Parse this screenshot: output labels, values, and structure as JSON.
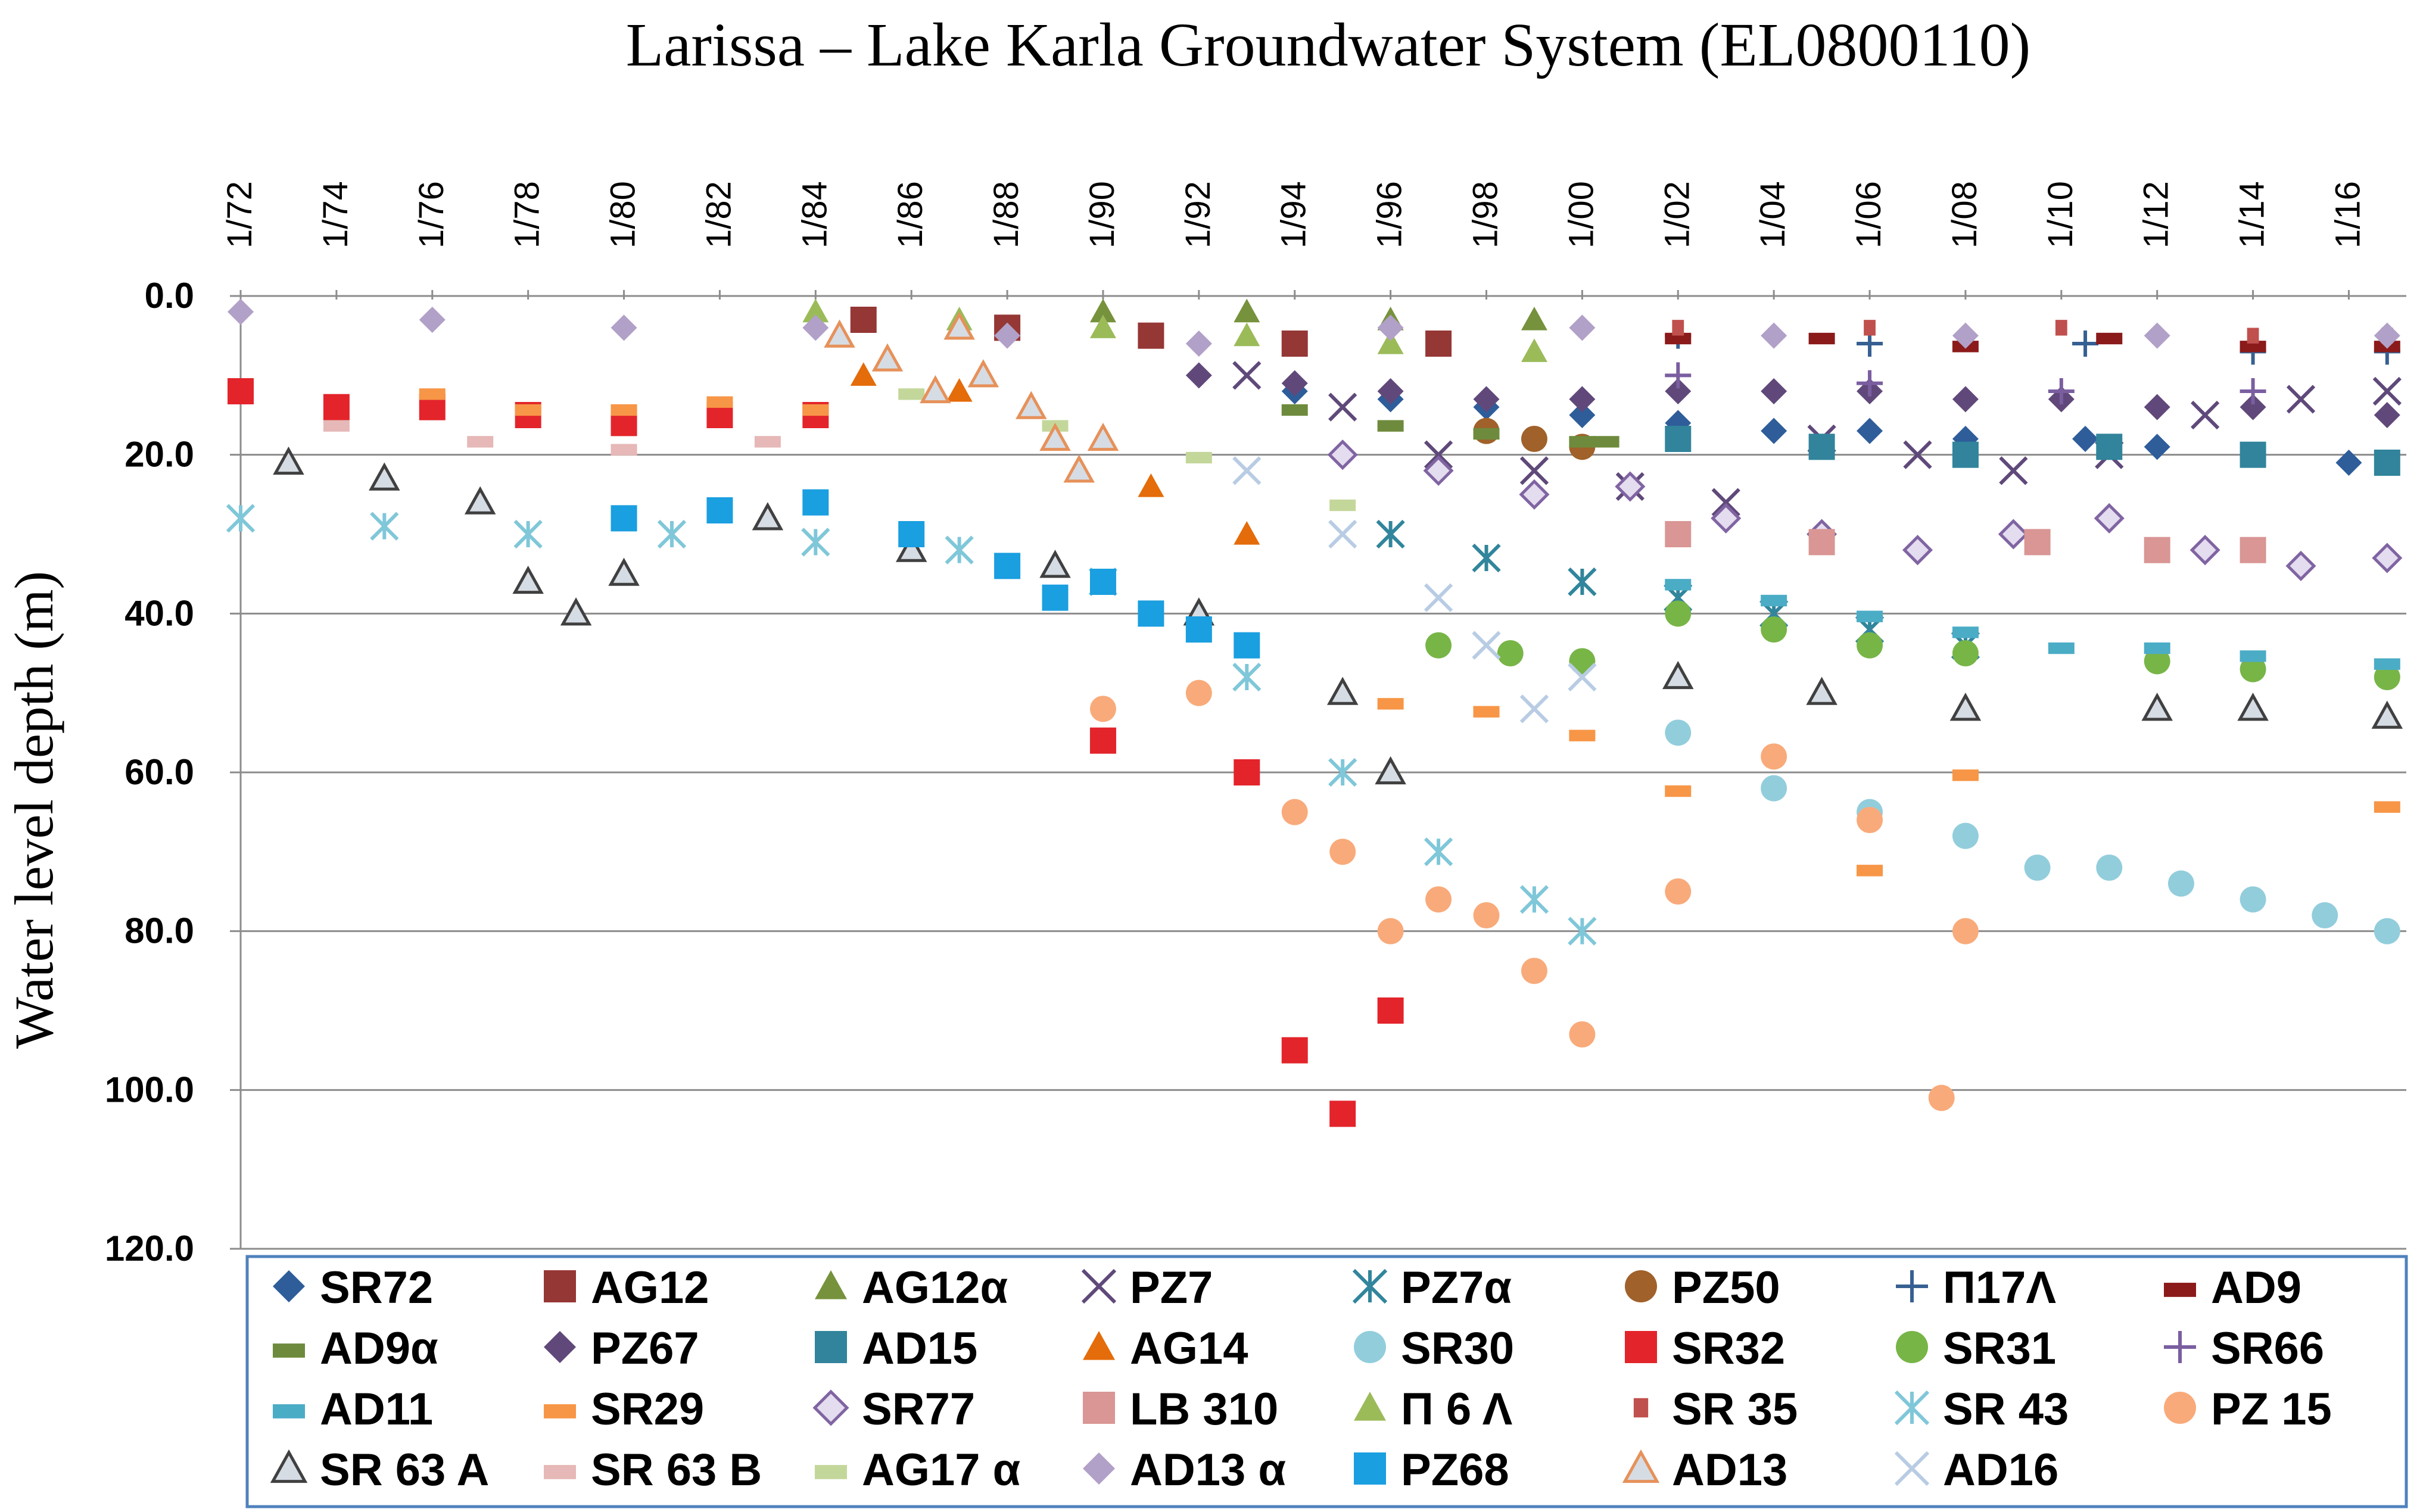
{
  "chart_data": {
    "type": "scatter",
    "title": "Larissa – Lake Karla Groundwater System (EL0800110)",
    "xlabel": "",
    "ylabel": "Water level depth (m)",
    "ylim": [
      0,
      120
    ],
    "y_inverted": true,
    "y_ticks": [
      "0.0",
      "20.0",
      "40.0",
      "60.0",
      "80.0",
      "100.0",
      "120.0"
    ],
    "x_ticks": [
      "1/72",
      "1/74",
      "1/76",
      "1/78",
      "1/80",
      "1/82",
      "1/84",
      "1/86",
      "1/88",
      "1/90",
      "1/92",
      "1/94",
      "1/96",
      "1/98",
      "1/00",
      "1/02",
      "1/04",
      "1/06",
      "1/08",
      "1/10",
      "1/12",
      "1/14",
      "1/16"
    ],
    "x_range_years": [
      1972,
      2017.2
    ],
    "grid": true,
    "legend_position": "bottom",
    "series": [
      {
        "name": "SR72",
        "marker": "diamond",
        "color": "#2e5d9a",
        "x": [
          1994.0,
          1996.0,
          1998.0,
          2000.0,
          2002.0,
          2004.0,
          2006.0,
          2008.0,
          2010.5,
          2012.0,
          2014.0,
          2016.0
        ],
        "y": [
          12,
          13,
          14,
          15,
          16,
          17,
          17,
          18,
          18,
          19,
          20,
          21
        ]
      },
      {
        "name": "AG12",
        "marker": "square",
        "color": "#953735",
        "x": [
          1985.0,
          1988.0,
          1991.0,
          1994.0,
          1997.0
        ],
        "y": [
          3,
          4,
          5,
          6,
          6
        ]
      },
      {
        "name": "AG12α",
        "marker": "triangle",
        "color": "#76923c",
        "x": [
          1990.0,
          1993.0,
          1996.0,
          1999.0
        ],
        "y": [
          2,
          2,
          3,
          3
        ]
      },
      {
        "name": "PZ7",
        "marker": "x",
        "color": "#5f497a",
        "x": [
          1993.0,
          1995.0,
          1997.0,
          1999.0,
          2001.0,
          2003.0,
          2005.0,
          2007.0,
          2009.0,
          2011.0,
          2013.0,
          2015.0,
          2016.8
        ],
        "y": [
          10,
          14,
          20,
          22,
          24,
          26,
          18,
          20,
          22,
          20,
          15,
          13,
          12
        ]
      },
      {
        "name": "PZ7α",
        "marker": "asterisk",
        "color": "#31859c",
        "x": [
          1996.0,
          1998.0,
          2000.0,
          2002.0,
          2004.0,
          2006.0,
          2008.0
        ],
        "y": [
          30,
          33,
          36,
          38,
          40,
          42,
          44
        ]
      },
      {
        "name": "PZ50",
        "marker": "circle",
        "color": "#a0612a",
        "x": [
          1998.0,
          1999.0,
          2000.0
        ],
        "y": [
          17,
          18,
          19
        ]
      },
      {
        "name": "Π17Λ",
        "marker": "plus",
        "color": "#376092",
        "x": [
          2002.0,
          2006.0,
          2010.5,
          2014.0,
          2016.8
        ],
        "y": [
          5,
          6,
          6,
          7,
          7
        ]
      },
      {
        "name": "AD9",
        "marker": "dash",
        "color": "#8b1a1a",
        "x": [
          2002.0,
          2005.0,
          2008.0,
          2011.0,
          2014.0,
          2016.8
        ],
        "y": [
          5,
          5,
          6,
          5,
          6,
          6
        ]
      },
      {
        "name": "AD9α",
        "marker": "dash",
        "color": "#6e8b3d",
        "x": [
          1994.0,
          1996.0,
          1998.0,
          2000.0,
          2000.5
        ],
        "y": [
          14,
          16,
          17,
          18,
          18
        ]
      },
      {
        "name": "PZ67",
        "marker": "diamond",
        "color": "#60497a",
        "x": [
          1992.0,
          1994.0,
          1996.0,
          1998.0,
          2000.0,
          2002.0,
          2004.0,
          2006.0,
          2008.0,
          2010.0,
          2012.0,
          2014.0,
          2016.8
        ],
        "y": [
          10,
          11,
          12,
          13,
          13,
          12,
          12,
          12,
          13,
          13,
          14,
          14,
          15
        ]
      },
      {
        "name": "AD15",
        "marker": "square",
        "color": "#31849b",
        "x": [
          2002.0,
          2005.0,
          2008.0,
          2011.0,
          2014.0,
          2016.8
        ],
        "y": [
          18,
          19,
          20,
          19,
          20,
          21
        ]
      },
      {
        "name": "AG14",
        "marker": "triangle",
        "color": "#e46c0a",
        "x": [
          1985.0,
          1987.0,
          1989.0,
          1991.0,
          1993.0
        ],
        "y": [
          10,
          12,
          18,
          24,
          30
        ]
      },
      {
        "name": "SR30",
        "marker": "circle",
        "color": "#92cddc",
        "x": [
          2002.0,
          2004.0,
          2006.0,
          2008.0,
          2009.5,
          2011.0,
          2012.5,
          2014.0,
          2015.5,
          2016.8
        ],
        "y": [
          55,
          62,
          65,
          68,
          72,
          72,
          74,
          76,
          78,
          80
        ]
      },
      {
        "name": "SR32",
        "marker": "square",
        "color": "#e3242b",
        "x": [
          1972.0,
          1974.0,
          1976.0,
          1978.0,
          1980.0,
          1982.0,
          1984.0,
          1990.0,
          1993.0,
          1994.0,
          1995.0,
          1996.0
        ],
        "y": [
          12,
          14,
          14,
          15,
          16,
          15,
          15,
          56,
          60,
          95,
          103,
          90
        ]
      },
      {
        "name": "SR31",
        "marker": "circle",
        "color": "#77b547",
        "x": [
          1997.0,
          1998.5,
          2000.0,
          2002.0,
          2004.0,
          2006.0,
          2008.0,
          2012.0,
          2014.0,
          2016.8
        ],
        "y": [
          44,
          45,
          46,
          40,
          42,
          44,
          45,
          46,
          47,
          48
        ]
      },
      {
        "name": "SR66",
        "marker": "plus",
        "color": "#7a5ea0",
        "x": [
          2002.0,
          2006.0,
          2010.0,
          2014.0
        ],
        "y": [
          10,
          11,
          12,
          12
        ]
      },
      {
        "name": "AD11",
        "marker": "dash",
        "color": "#4bacc6",
        "x": [
          2002.0,
          2004.0,
          2006.0,
          2008.0,
          2010.0,
          2012.0,
          2014.0,
          2016.8
        ],
        "y": [
          36,
          38,
          40,
          42,
          44,
          44,
          45,
          46
        ]
      },
      {
        "name": "SR29",
        "marker": "dash",
        "color": "#f79646",
        "x": [
          1976.0,
          1978.0,
          1980.0,
          1982.0,
          1984.0,
          1996.0,
          1998.0,
          2000.0,
          2002.0,
          2006.0,
          2008.0,
          2016.8
        ],
        "y": [
          12,
          14,
          14,
          13,
          14,
          51,
          52,
          55,
          62,
          72,
          60,
          64
        ]
      },
      {
        "name": "SR77",
        "marker": "diamond-open",
        "color": "#8064a2",
        "x": [
          1995.0,
          1997.0,
          1999.0,
          2001.0,
          2003.0,
          2005.0,
          2007.0,
          2009.0,
          2011.0,
          2013.0,
          2015.0,
          2016.8
        ],
        "y": [
          20,
          22,
          25,
          24,
          28,
          30,
          32,
          30,
          28,
          32,
          34,
          33
        ]
      },
      {
        "name": "LB 310",
        "marker": "square",
        "color": "#d99694",
        "x": [
          2002.0,
          2005.0,
          2009.5,
          2012.0,
          2014.0
        ],
        "y": [
          30,
          31,
          31,
          32,
          32
        ]
      },
      {
        "name": "Π 6 Λ",
        "marker": "triangle",
        "color": "#9bbb59",
        "x": [
          1984.0,
          1987.0,
          1990.0,
          1993.0,
          1996.0,
          1999.0
        ],
        "y": [
          2,
          3,
          4,
          5,
          6,
          7
        ]
      },
      {
        "name": "SR 35",
        "marker": "square-small",
        "color": "#c0504d",
        "x": [
          2002.0,
          2006.0,
          2010.0,
          2014.0,
          2016.8
        ],
        "y": [
          4,
          4,
          4,
          5,
          5
        ]
      },
      {
        "name": "SR 43",
        "marker": "asterisk",
        "color": "#7fc7d9",
        "x": [
          1972.0,
          1975.0,
          1978.0,
          1981.0,
          1984.0,
          1987.0,
          1990.0,
          1993.0,
          1995.0,
          1997.0,
          1999.0,
          2000.0
        ],
        "y": [
          28,
          29,
          30,
          30,
          31,
          32,
          36,
          48,
          60,
          70,
          76,
          80
        ]
      },
      {
        "name": "PZ 15",
        "marker": "circle",
        "color": "#f9aa7a",
        "x": [
          1990.0,
          1992.0,
          1994.0,
          1995.0,
          1996.0,
          1997.0,
          1998.0,
          1999.0,
          2000.0,
          2002.0,
          2004.0,
          2006.0,
          2007.5,
          2008.0
        ],
        "y": [
          52,
          50,
          65,
          70,
          80,
          76,
          78,
          85,
          93,
          75,
          58,
          66,
          101,
          80
        ]
      },
      {
        "name": "SR 63 A",
        "marker": "triangle-open",
        "color": "#404040",
        "x": [
          1973.0,
          1975.0,
          1977.0,
          1978.0,
          1979.0,
          1980.0,
          1983.0,
          1986.0,
          1989.0,
          1992.0,
          1995.0,
          1996.0,
          2002.0,
          2005.0,
          2008.0,
          2012.0,
          2014.0,
          2016.8
        ],
        "y": [
          21,
          23,
          26,
          36,
          40,
          35,
          28,
          32,
          34,
          40,
          50,
          60,
          48,
          50,
          52,
          52,
          52,
          53
        ]
      },
      {
        "name": "SR 63 B",
        "marker": "dash",
        "color": "#e6b8b7",
        "x": [
          1974.0,
          1977.0,
          1980.0,
          1983.0
        ],
        "y": [
          16,
          18,
          19,
          18
        ]
      },
      {
        "name": "AG17 α",
        "marker": "dash",
        "color": "#c4d79b",
        "x": [
          1986.0,
          1989.0,
          1992.0,
          1995.0
        ],
        "y": [
          12,
          16,
          20,
          26
        ]
      },
      {
        "name": "AD13 α",
        "marker": "diamond",
        "color": "#b1a0c7",
        "x": [
          1972.0,
          1976.0,
          1980.0,
          1984.0,
          1988.0,
          1992.0,
          1996.0,
          2000.0,
          2004.0,
          2008.0,
          2012.0,
          2016.8
        ],
        "y": [
          2,
          3,
          4,
          4,
          5,
          6,
          4,
          4,
          5,
          5,
          5,
          5
        ]
      },
      {
        "name": "PZ68",
        "marker": "square",
        "color": "#1a9fe0",
        "x": [
          1980.0,
          1982.0,
          1984.0,
          1986.0,
          1988.0,
          1989.0,
          1990.0,
          1991.0,
          1992.0,
          1993.0
        ],
        "y": [
          28,
          27,
          26,
          30,
          34,
          38,
          36,
          40,
          42,
          44
        ]
      },
      {
        "name": "AD13",
        "marker": "triangle-open",
        "color": "#e6915a",
        "x": [
          1984.5,
          1985.5,
          1986.5,
          1987.0,
          1987.5,
          1988.5,
          1989.0,
          1989.5,
          1990.0
        ],
        "y": [
          5,
          8,
          12,
          4,
          10,
          14,
          18,
          22,
          18
        ]
      },
      {
        "name": "AD16",
        "marker": "x",
        "color": "#b8cce4",
        "x": [
          1993.0,
          1995.0,
          1997.0,
          1998.0,
          1999.0,
          2000.0
        ],
        "y": [
          22,
          30,
          38,
          44,
          52,
          48
        ]
      }
    ]
  }
}
